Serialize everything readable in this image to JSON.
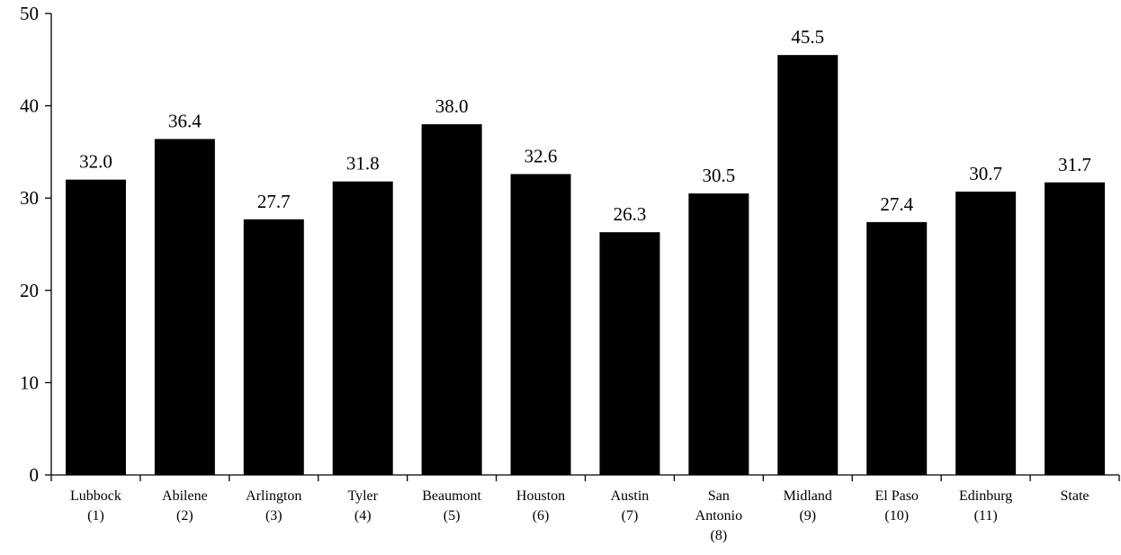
{
  "chart_data": {
    "type": "bar",
    "categories": [
      [
        "Lubbock",
        "(1)"
      ],
      [
        "Abilene",
        "(2)"
      ],
      [
        "Arlington",
        "(3)"
      ],
      [
        "Tyler",
        "(4)"
      ],
      [
        "Beaumont",
        "(5)"
      ],
      [
        "Houston",
        "(6)"
      ],
      [
        "Austin",
        "(7)"
      ],
      [
        "San",
        "Antonio",
        "(8)"
      ],
      [
        "Midland",
        "(9)"
      ],
      [
        "El Paso",
        "(10)"
      ],
      [
        "Edinburg",
        "(11)"
      ],
      [
        "State"
      ]
    ],
    "values": [
      32.0,
      36.4,
      27.7,
      31.8,
      38.0,
      32.6,
      26.3,
      30.5,
      45.5,
      27.4,
      30.7,
      31.7
    ],
    "data_labels": [
      "32.0",
      "36.4",
      "27.7",
      "31.8",
      "38.0",
      "32.6",
      "26.3",
      "30.5",
      "45.5",
      "27.4",
      "30.7",
      "31.7"
    ],
    "yticks": [
      0,
      10,
      20,
      30,
      40,
      50
    ],
    "ylim": [
      0,
      50
    ],
    "title": "",
    "xlabel": "",
    "ylabel": "",
    "bar_color": "#000000",
    "grid": false
  }
}
